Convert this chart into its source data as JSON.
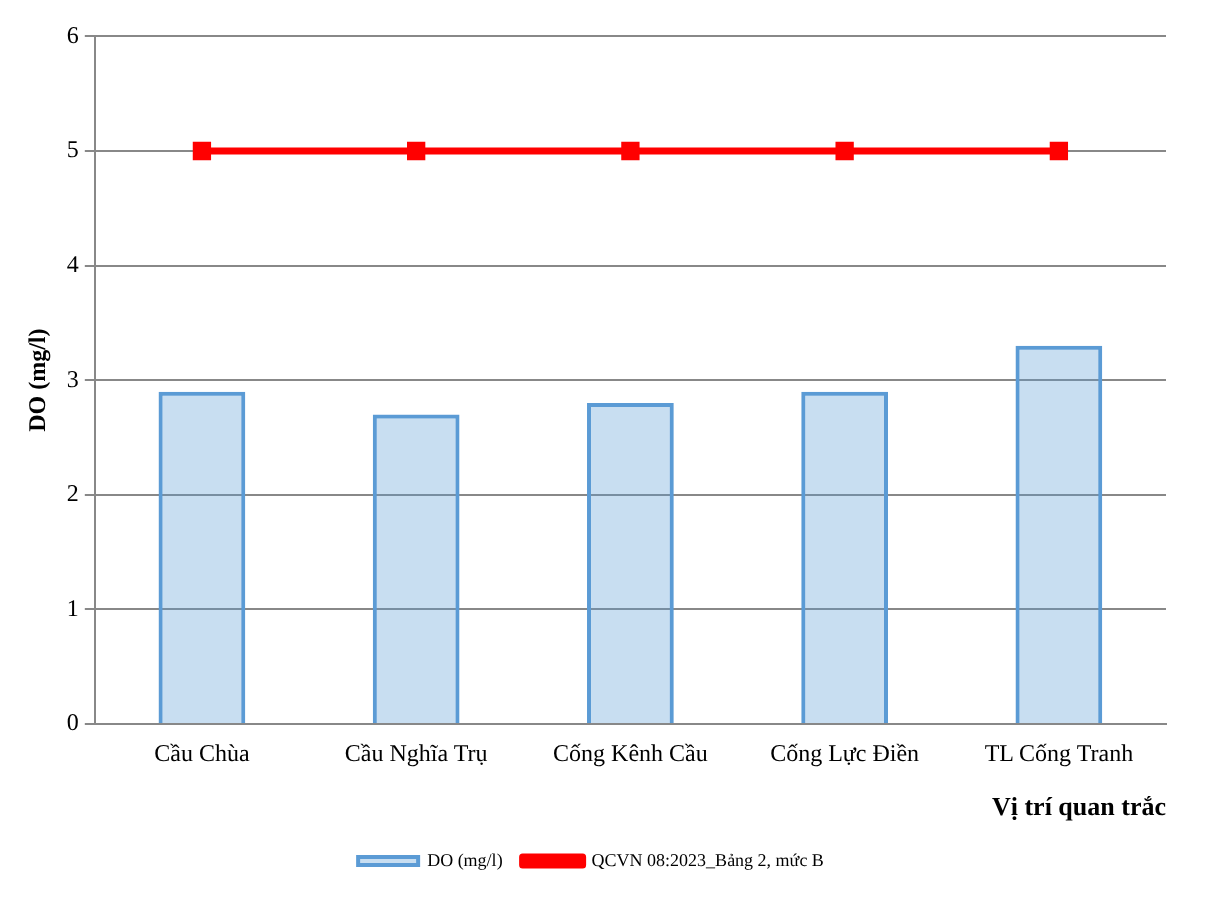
{
  "chart_data": {
    "type": "bar",
    "categories": [
      "Cầu Chùa",
      "Cầu Nghĩa Trụ",
      "Cống Kênh Cầu",
      "Cống Lực Điền",
      "TL Cống Tranh"
    ],
    "series": [
      {
        "name": "DO (mg/l)",
        "color": "#5b9bd5",
        "values": [
          2.9,
          2.7,
          2.8,
          2.9,
          3.3
        ]
      },
      {
        "name": "QCVN 08:2023_Bảng 2, mức B",
        "type": "line",
        "color": "#ff0000",
        "marker": "square",
        "values": [
          5,
          5,
          5,
          5,
          5
        ]
      }
    ],
    "xlabel": "Vị trí quan trắc",
    "ylabel": "DO (mg/l)",
    "ylim": [
      0,
      6
    ],
    "yticks": [
      0,
      1,
      2,
      3,
      4,
      5,
      6
    ],
    "grid": "y",
    "legend": "bottom"
  }
}
